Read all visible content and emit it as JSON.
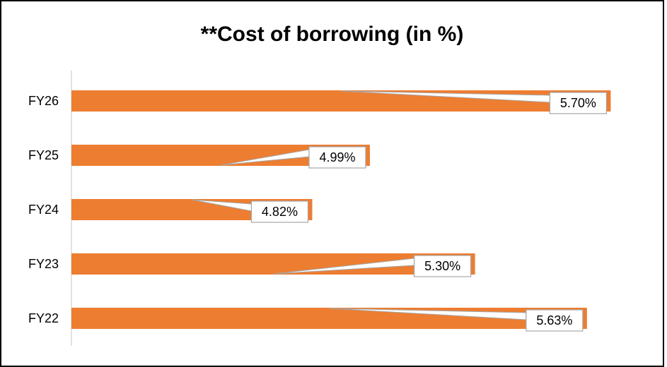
{
  "chart_data": {
    "type": "bar",
    "orientation": "horizontal",
    "title": "**Cost of borrowing (in %)",
    "categories": [
      "FY26",
      "FY25",
      "FY24",
      "FY23",
      "FY22"
    ],
    "values": [
      5.7,
      4.99,
      4.82,
      5.3,
      5.63
    ],
    "data_labels": [
      "5.70%",
      "4.99%",
      "4.82%",
      "5.30%",
      "5.63%"
    ],
    "xlim": [
      4.11,
      5.72
    ],
    "xlabel": "",
    "ylabel": "",
    "grid": false,
    "legend": "none",
    "bar_color": "#ED7D31",
    "label_box_border": "#A6A6A6"
  }
}
